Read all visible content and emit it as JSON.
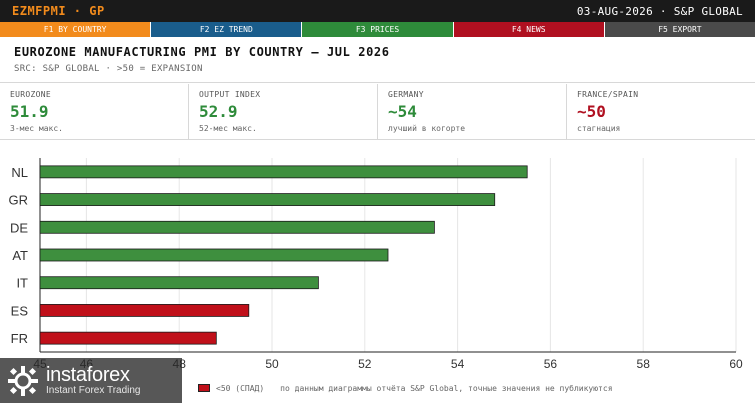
{
  "topbar": {
    "ticker": "EZMFPMI · GP",
    "meta": "03-AUG-2026 · S&P GLOBAL"
  },
  "fkeys": [
    {
      "label": "F1 BY COUNTRY",
      "color": "#f28b1c"
    },
    {
      "label": "F2 EZ TREND",
      "color": "#1a5d8c"
    },
    {
      "label": "F3 PRICES",
      "color": "#2e8b3a"
    },
    {
      "label": "F4 NEWS",
      "color": "#b01020"
    },
    {
      "label": "F5 EXPORT",
      "color": "#4a4a4a"
    }
  ],
  "header": {
    "title": "EUROZONE MANUFACTURING PMI BY COUNTRY — JUL 2026",
    "subtitle": "SRC: S&P GLOBAL · >50 = EXPANSION"
  },
  "kpis": [
    {
      "label": "EUROZONE",
      "value": "51.9",
      "note": "3-мес макс.",
      "tone": "green"
    },
    {
      "label": "OUTPUT INDEX",
      "value": "52.9",
      "note": "52-мес макс.",
      "tone": "green"
    },
    {
      "label": "GERMANY",
      "value": "~54",
      "note": "лучший в когорте",
      "tone": "green"
    },
    {
      "label": "FRANCE/SPAIN",
      "value": "~50",
      "note": "стагнация",
      "tone": "red"
    }
  ],
  "chart_data": {
    "type": "bar",
    "orientation": "horizontal",
    "categories": [
      "NL",
      "GR",
      "DE",
      "AT",
      "IT",
      "ES",
      "FR"
    ],
    "values": [
      55.5,
      54.8,
      53.5,
      52.5,
      51.0,
      49.5,
      48.8
    ],
    "bar_colors": [
      "#3e8f3e",
      "#3e8f3e",
      "#3e8f3e",
      "#3e8f3e",
      "#3e8f3e",
      "#c0101a",
      "#c0101a"
    ],
    "xlim": [
      45,
      60
    ],
    "xticks": [
      45,
      46,
      48,
      50,
      52,
      54,
      56,
      58,
      60
    ],
    "grid": true
  },
  "footer": {
    "legend_contraction": "<50 (СПАД)",
    "note": "по данным диаграммы отчёта S&P Global, точные значения не публикуются"
  },
  "watermark": {
    "brand": "instaforex",
    "tagline": "Instant Forex Trading"
  }
}
